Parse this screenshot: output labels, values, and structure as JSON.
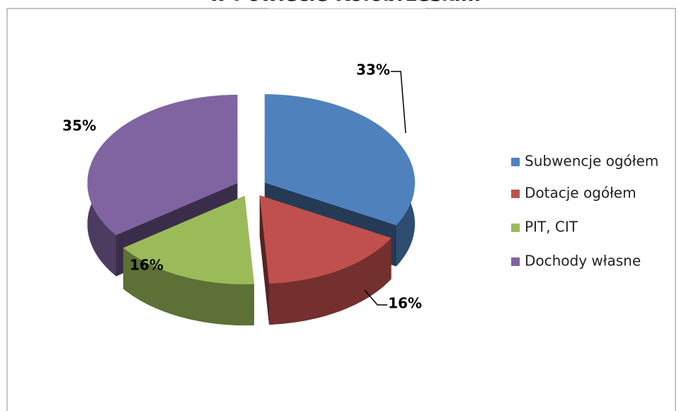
{
  "chart_data": {
    "type": "pie",
    "title": "w Powiecie Kołobrzeskim",
    "categories": [
      "Subwencje ogółem",
      "Dotacje ogółem",
      "PIT, CIT",
      "Dochody własne"
    ],
    "values": [
      33,
      16,
      16,
      35
    ],
    "value_labels": [
      "33%",
      "16%",
      "16%",
      "35%"
    ],
    "colors": [
      "#4f81bd",
      "#c0504d",
      "#9bbb59",
      "#8064a2"
    ],
    "legend": "right"
  }
}
